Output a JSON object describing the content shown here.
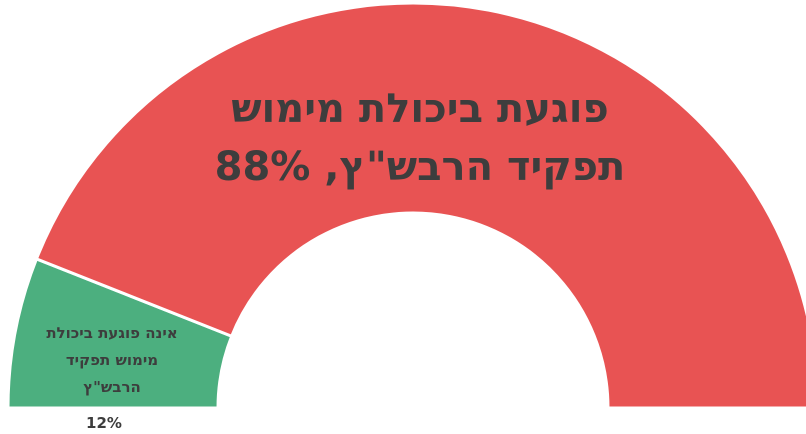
{
  "chart_data": {
    "type": "pie",
    "subtype": "half-donut",
    "slices": [
      {
        "label_lines": [
          "פוגעת ביכולת מימוש",
          "תפקיד הרבש\"ץ, 88%"
        ],
        "value": 88,
        "color": "#e85353"
      },
      {
        "label_lines": [
          "אינה פוגעת ביכולת",
          "מימוש תפקיד",
          "הרבש\"ץ"
        ],
        "value_label": "12%",
        "value": 12,
        "color": "#4caf7f"
      }
    ]
  }
}
